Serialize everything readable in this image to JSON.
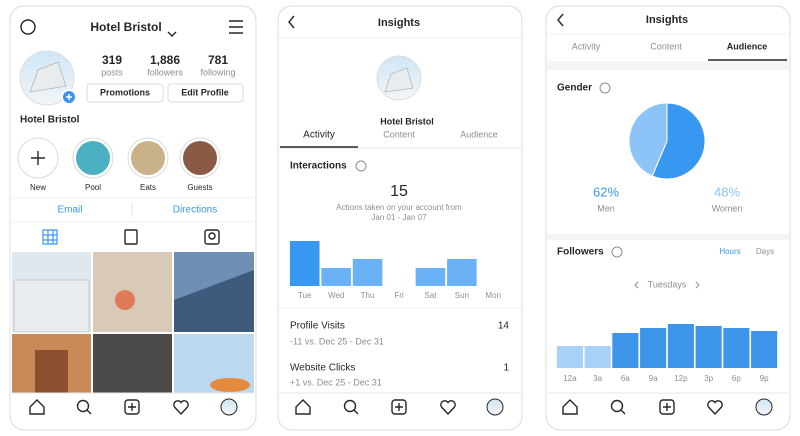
{
  "profile": {
    "username": "Hotel Bristol",
    "stats": [
      {
        "value": "319",
        "label": "posts"
      },
      {
        "value": "1,886",
        "label": "followers"
      },
      {
        "value": "781",
        "label": "following"
      }
    ],
    "buttons": [
      "Promotions",
      "Edit Profile"
    ],
    "name": "Hotel Bristol",
    "highlights": [
      "New",
      "Pool",
      "Eats",
      "Guests"
    ],
    "links": [
      "Email",
      "Directions"
    ]
  },
  "activity": {
    "title": "Insights",
    "account": "Hotel Bristol",
    "tabs": [
      "Activity",
      "Content",
      "Audience"
    ],
    "interactions": {
      "heading": "Interactions",
      "total": "15",
      "caption": "Actions taken on your account from",
      "range": "Jan 01 - Jan 07",
      "chart": {
        "type": "bar",
        "categories": [
          "Tue",
          "Wed",
          "Thu",
          "Fri",
          "Sat",
          "Sun",
          "Mon"
        ],
        "values": [
          5,
          2,
          3,
          0,
          2,
          3,
          0
        ],
        "colors": [
          "#3897f0",
          "#6ab2f5",
          "#6ab2f5",
          "#6ab2f5",
          "#6ab2f5",
          "#6ab2f5",
          "#6ab2f5"
        ]
      }
    },
    "metrics": [
      {
        "label": "Profile Visits",
        "value": "14",
        "change": "-11 vs. Dec 25 - Dec 31"
      },
      {
        "label": "Website Clicks",
        "value": "1",
        "change": "+1 vs. Dec 25 - Dec 31"
      }
    ]
  },
  "audience": {
    "title": "Insights",
    "tabs": [
      "Activity",
      "Content",
      "Audience"
    ],
    "gender": {
      "heading": "Gender",
      "chart": {
        "type": "pie",
        "categories": [
          "Men",
          "Women"
        ],
        "values": [
          62,
          48
        ],
        "value_labels": [
          "62%",
          "48%"
        ],
        "colors": [
          "#3897f0",
          "#8cc4f8"
        ]
      }
    },
    "followers": {
      "heading": "Followers",
      "toggles": [
        "Hours",
        "Days"
      ],
      "day": "Tuesdays",
      "chart": {
        "type": "bar",
        "categories": [
          "12a",
          "3a",
          "6a",
          "9a",
          "12p",
          "3p",
          "6p",
          "9p"
        ],
        "values": [
          22,
          22,
          35,
          40,
          44,
          42,
          40,
          37
        ],
        "colors": [
          "#a9d1f7",
          "#a9d1f7",
          "#3d95ea",
          "#3d95ea",
          "#3d95ea",
          "#3d95ea",
          "#3d95ea",
          "#3d95ea"
        ]
      }
    }
  }
}
